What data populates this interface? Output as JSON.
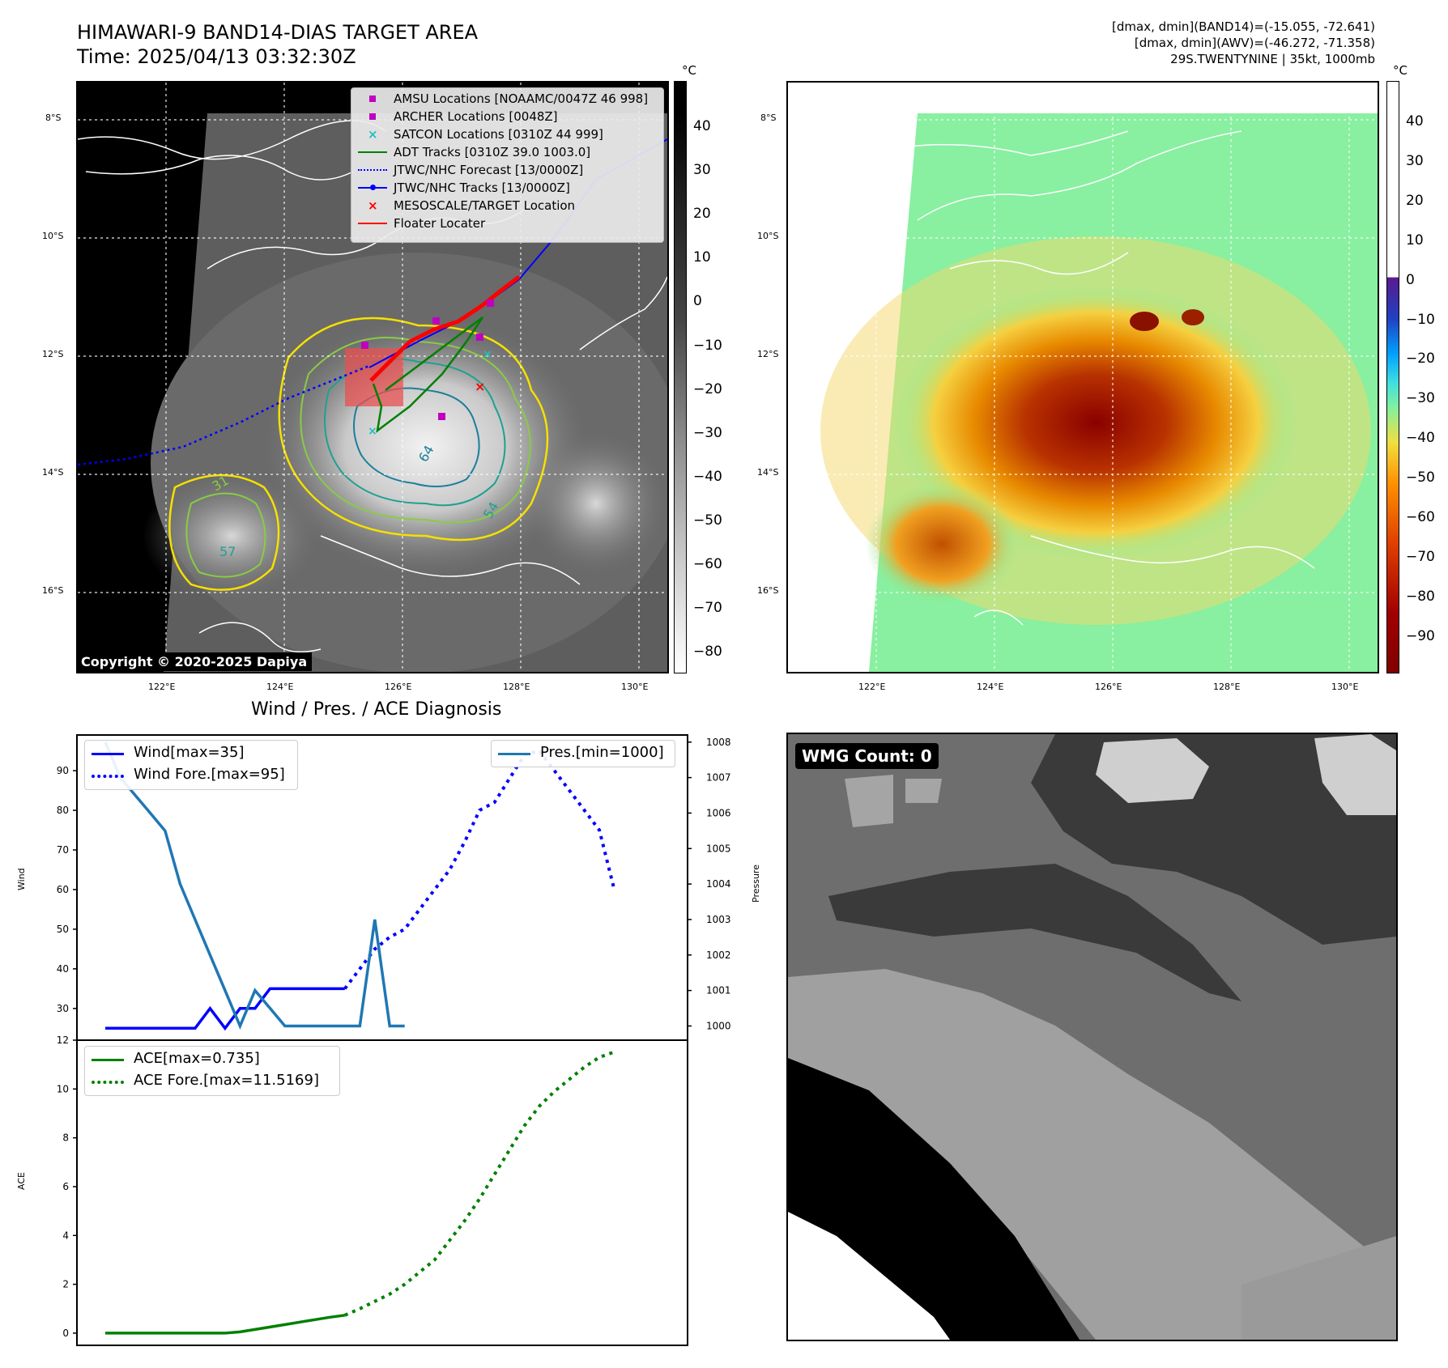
{
  "header": {
    "title_line1": "HIMAWARI-9 BAND14-DIAS TARGET AREA",
    "title_line2": "Time: 2025/04/13 03:32:30Z",
    "right_line1": "[dmax, dmin](BAND14)=(-15.055, -72.641)",
    "right_line2": "[dmax, dmin](AWV)=(-46.272, -71.358)",
    "right_line3": "29S.TWENTYNINE | 35kt, 1000mb"
  },
  "map_axes": {
    "lat_labels": [
      "8°S",
      "10°S",
      "12°S",
      "14°S",
      "16°S"
    ],
    "lon_labels": [
      "122°E",
      "124°E",
      "126°E",
      "128°E",
      "130°E"
    ]
  },
  "colorbar_ir": {
    "unit": "°C",
    "ticks": [
      "40",
      "30",
      "20",
      "10",
      "0",
      "−10",
      "−20",
      "−30",
      "−40",
      "−50",
      "−60",
      "−70",
      "−80"
    ]
  },
  "colorbar_awv": {
    "unit": "°C",
    "ticks": [
      "40",
      "30",
      "20",
      "10",
      "0",
      "−10",
      "−20",
      "−30",
      "−40",
      "−50",
      "−60",
      "−70",
      "−80",
      "−90"
    ]
  },
  "map_legend": {
    "items": [
      {
        "label": "AMSU Locations [NOAAMC/0047Z 46 998]",
        "marker": "square",
        "color": "#c000c0"
      },
      {
        "label": "ARCHER Locations [0048Z]",
        "marker": "square",
        "color": "#c000c0"
      },
      {
        "label": "SATCON Locations [0310Z 44 999]",
        "marker": "x",
        "color": "#20c0c0"
      },
      {
        "label": "ADT Tracks [0310Z 39.0 1003.0]",
        "marker": "line",
        "color": "#008000"
      },
      {
        "label": "JTWC/NHC Forecast [13/0000Z]",
        "marker": "dotted",
        "color": "#0000ff"
      },
      {
        "label": "JTWC/NHC Tracks [13/0000Z]",
        "marker": "line-dot",
        "color": "#0000ff"
      },
      {
        "label": "MESOSCALE/TARGET Location",
        "marker": "x",
        "color": "#ff0000"
      },
      {
        "label": "Floater Locater",
        "marker": "line",
        "color": "#ff0000"
      }
    ]
  },
  "contour_labels": [
    "57",
    "64",
    "31",
    "57",
    "54"
  ],
  "copyright": "Copyright © 2020-2025 Dapiya",
  "diagnosis": {
    "title": "Wind / Pres. / ACE Diagnosis",
    "wind_ylabel": "Wind",
    "pres_ylabel": "Pressure",
    "ace_ylabel": "ACE",
    "wind_ticks": [
      "90",
      "80",
      "70",
      "60",
      "50",
      "40",
      "30"
    ],
    "pres_ticks": [
      "1008",
      "1007",
      "1006",
      "1005",
      "1004",
      "1003",
      "1002",
      "1001",
      "1000"
    ],
    "ace_ticks": [
      "12",
      "10",
      "8",
      "6",
      "4",
      "2",
      "0"
    ],
    "legend_wind": "Wind[max=35]",
    "legend_wind_fore": "Wind Fore.[max=95]",
    "legend_pres": "Pres.[min=1000]",
    "legend_ace": "ACE[max=0.735]",
    "legend_ace_fore": "ACE Fore.[max=11.5169]"
  },
  "wmg": {
    "label": "WMG Count: 0"
  },
  "colors": {
    "wind": "#0000ff",
    "pressure": "#1f77b4",
    "ace": "#008000"
  },
  "chart_data": [
    {
      "type": "line",
      "title": "Wind / Pres. / ACE Diagnosis",
      "ylabel": "Wind",
      "ylim": [
        22,
        99
      ],
      "series": [
        {
          "name": "Wind[max=35]",
          "x": [
            0,
            1,
            2,
            3,
            4,
            5,
            6,
            7,
            8,
            9,
            10,
            11,
            12,
            13,
            14,
            15,
            16
          ],
          "values": [
            25,
            25,
            25,
            25,
            25,
            25,
            25,
            30,
            25,
            30,
            30,
            35,
            35,
            35,
            35,
            35,
            35
          ]
        },
        {
          "name": "Wind Fore.[max=95]",
          "x": [
            16,
            17,
            18,
            19,
            20,
            21,
            22,
            23,
            24,
            25,
            26,
            27,
            28,
            29,
            30,
            31,
            32,
            33,
            34
          ],
          "values": [
            35,
            40,
            45,
            48,
            50,
            55,
            60,
            65,
            72,
            80,
            82,
            88,
            94,
            95,
            90,
            85,
            80,
            75,
            60
          ]
        }
      ]
    },
    {
      "type": "line",
      "ylabel": "Pressure",
      "ylim": [
        999.6,
        1008.2
      ],
      "series": [
        {
          "name": "Pres.[min=1000]",
          "x": [
            0,
            1,
            2,
            3,
            4,
            5,
            6,
            7,
            8,
            9,
            10,
            11,
            12,
            13,
            14,
            15,
            16,
            17,
            18,
            19,
            20
          ],
          "values": [
            1008,
            1007,
            1006.5,
            1006,
            1005.5,
            1004,
            1003,
            1002,
            1001,
            1000,
            1001,
            1000.5,
            1000,
            1000,
            1000,
            1000,
            1000,
            1000,
            1003,
            1000,
            1000
          ]
        }
      ]
    },
    {
      "type": "line",
      "ylabel": "ACE",
      "ylim": [
        -0.5,
        12
      ],
      "series": [
        {
          "name": "ACE[max=0.735]",
          "x": [
            0,
            1,
            2,
            3,
            4,
            5,
            6,
            7,
            8,
            9,
            10,
            11,
            12,
            13,
            14,
            15,
            16
          ],
          "values": [
            0,
            0,
            0,
            0,
            0,
            0,
            0,
            0,
            0,
            0.05,
            0.15,
            0.25,
            0.35,
            0.45,
            0.55,
            0.65,
            0.735
          ]
        },
        {
          "name": "ACE Fore.[max=11.5169]",
          "x": [
            16,
            17,
            18,
            19,
            20,
            21,
            22,
            23,
            24,
            25,
            26,
            27,
            28,
            29,
            30,
            31,
            32,
            33,
            34
          ],
          "values": [
            0.735,
            1.0,
            1.3,
            1.6,
            2.0,
            2.5,
            3.0,
            3.8,
            4.6,
            5.5,
            6.5,
            7.5,
            8.5,
            9.3,
            9.9,
            10.4,
            10.9,
            11.3,
            11.5169
          ]
        }
      ]
    }
  ]
}
